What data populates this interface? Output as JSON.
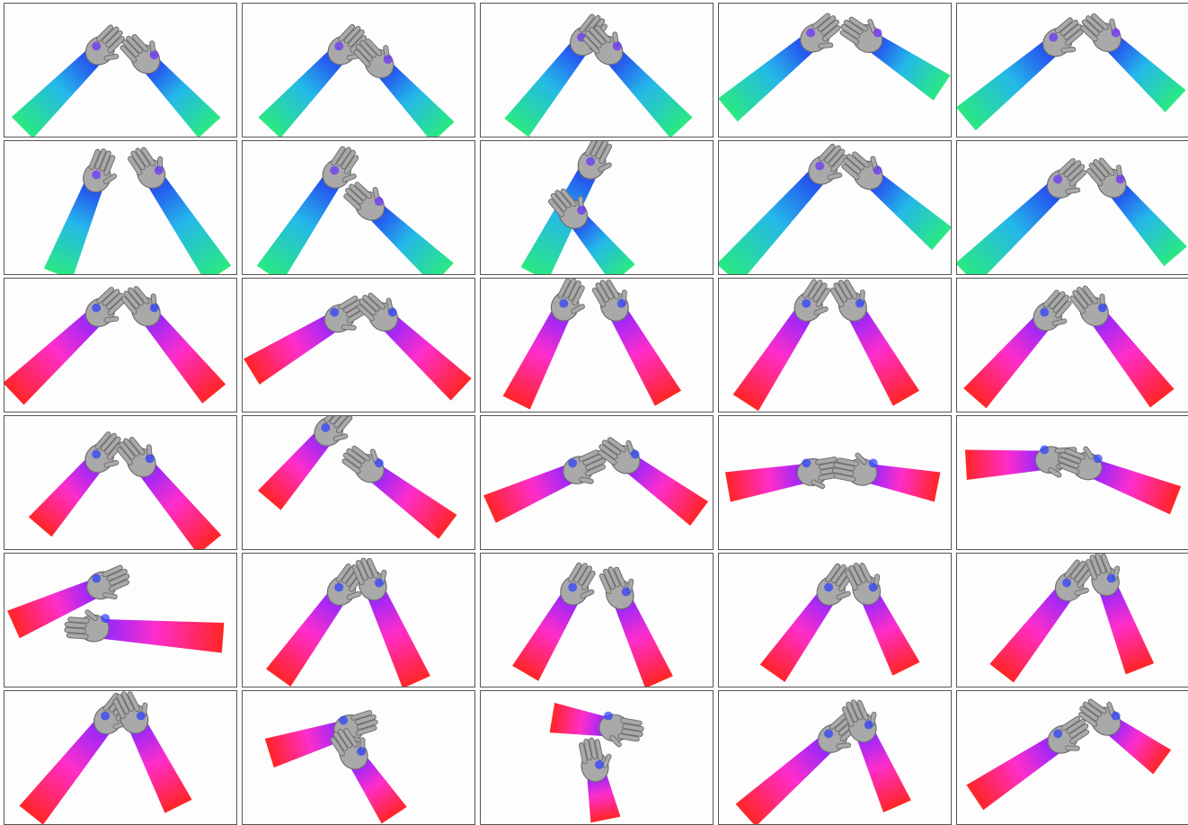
{
  "grid": {
    "rows": 6,
    "cols": 5,
    "row_themes": [
      "cool",
      "cool",
      "warm",
      "warm",
      "warm",
      "warm"
    ]
  },
  "palettes": {
    "cool": {
      "arm_near": "#1ee87a",
      "arm_mid": "#19b4e8",
      "arm_far": "#1a3cf0",
      "accent": "#6a2cff"
    },
    "warm": {
      "arm_near": "#ff1a1a",
      "arm_mid": "#ff22c8",
      "arm_far": "#8a1cff",
      "accent": "#2a3cff"
    }
  },
  "hand_color": "#a9a9a9",
  "hand_shadow": "#6f6f6f",
  "panels": [
    {
      "pose": [
        20,
        140,
        100,
        60,
        230,
        140,
        165,
        70
      ]
    },
    {
      "pose": [
        30,
        140,
        105,
        60,
        225,
        145,
        160,
        75
      ]
    },
    {
      "pose": [
        40,
        140,
        110,
        50,
        225,
        140,
        150,
        60
      ]
    },
    {
      "pose": [
        10,
        120,
        100,
        45,
        250,
        95,
        175,
        45
      ]
    },
    {
      "pose": [
        10,
        130,
        105,
        50,
        245,
        110,
        175,
        45
      ]
    },
    {
      "pose": [
        60,
        150,
        100,
        50,
        240,
        150,
        170,
        45
      ]
    },
    {
      "pose": [
        30,
        150,
        100,
        45,
        225,
        150,
        150,
        80
      ]
    },
    {
      "pose": [
        60,
        150,
        120,
        35,
        160,
        150,
        110,
        90
      ]
    },
    {
      "pose": [
        10,
        150,
        110,
        40,
        250,
        110,
        175,
        45
      ]
    },
    {
      "pose": [
        10,
        150,
        110,
        55,
        245,
        130,
        180,
        55
      ]
    },
    {
      "pose": [
        10,
        130,
        100,
        45,
        235,
        130,
        165,
        45
      ]
    },
    {
      "pose": [
        10,
        105,
        100,
        50,
        245,
        125,
        165,
        50
      ]
    },
    {
      "pose": [
        40,
        140,
        90,
        40,
        210,
        135,
        155,
        40
      ]
    },
    {
      "pose": [
        30,
        140,
        95,
        40,
        210,
        135,
        155,
        40
      ]
    },
    {
      "pose": [
        20,
        135,
        95,
        50,
        230,
        135,
        160,
        45
      ]
    },
    {
      "pose": [
        40,
        125,
        100,
        55,
        230,
        145,
        160,
        60
      ]
    },
    {
      "pose": [
        30,
        95,
        90,
        25,
        230,
        125,
        150,
        65
      ]
    },
    {
      "pose": [
        10,
        105,
        100,
        65,
        245,
        110,
        170,
        55
      ]
    },
    {
      "pose": [
        10,
        80,
        95,
        65,
        245,
        80,
        170,
        65
      ]
    },
    {
      "pose": [
        10,
        55,
        95,
        50,
        245,
        95,
        155,
        60
      ]
    },
    {
      "pose": [
        10,
        80,
        100,
        40,
        245,
        95,
        110,
        85
      ]
    },
    {
      "pose": [
        40,
        140,
        105,
        50,
        195,
        145,
        150,
        45
      ]
    },
    {
      "pose": [
        50,
        135,
        100,
        50,
        200,
        145,
        160,
        55
      ]
    },
    {
      "pose": [
        60,
        135,
        120,
        50,
        210,
        130,
        170,
        50
      ]
    },
    {
      "pose": [
        50,
        135,
        120,
        45,
        205,
        130,
        170,
        40
      ]
    },
    {
      "pose": [
        30,
        140,
        110,
        40,
        195,
        130,
        150,
        40
      ]
    },
    {
      "pose": [
        30,
        70,
        110,
        45,
        170,
        140,
        130,
        80
      ]
    },
    {
      "pose": [
        80,
        30,
        140,
        40,
        140,
        145,
        130,
        95
      ]
    },
    {
      "pose": [
        30,
        140,
        120,
        60,
        200,
        130,
        165,
        50
      ]
    },
    {
      "pose": [
        20,
        120,
        110,
        60,
        230,
        80,
        175,
        40
      ]
    }
  ]
}
